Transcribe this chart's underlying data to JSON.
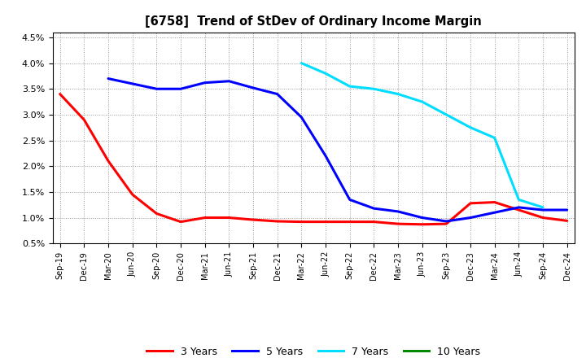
{
  "title": "[6758]  Trend of StDev of Ordinary Income Margin",
  "background_color": "#ffffff",
  "plot_bg_color": "#ffffff",
  "grid_color": "#999999",
  "ylim": [
    0.005,
    0.046
  ],
  "yticks": [
    0.005,
    0.01,
    0.015,
    0.02,
    0.025,
    0.03,
    0.035,
    0.04,
    0.045
  ],
  "ytick_labels": [
    "0.5%",
    "1.0%",
    "1.5%",
    "2.0%",
    "2.5%",
    "3.0%",
    "3.5%",
    "4.0%",
    "4.5%"
  ],
  "x_labels": [
    "Sep-19",
    "Dec-19",
    "Mar-20",
    "Jun-20",
    "Sep-20",
    "Dec-20",
    "Mar-21",
    "Jun-21",
    "Sep-21",
    "Dec-21",
    "Mar-22",
    "Jun-22",
    "Sep-22",
    "Dec-22",
    "Mar-23",
    "Jun-23",
    "Sep-23",
    "Dec-23",
    "Mar-24",
    "Jun-24",
    "Sep-24",
    "Dec-24"
  ],
  "series": {
    "3 Years": {
      "color": "#ff0000",
      "values": [
        0.034,
        0.029,
        0.021,
        0.0145,
        0.0108,
        0.0092,
        0.01,
        0.01,
        0.0096,
        0.0093,
        0.0092,
        0.0092,
        0.0092,
        0.0092,
        0.0088,
        0.0087,
        0.0088,
        0.0128,
        0.013,
        0.0115,
        0.01,
        0.0094
      ]
    },
    "5 Years": {
      "color": "#0000ff",
      "values": [
        null,
        null,
        0.037,
        0.036,
        0.035,
        0.035,
        0.0362,
        0.0365,
        0.0352,
        0.034,
        0.0295,
        0.022,
        0.0135,
        0.0118,
        0.0112,
        0.01,
        0.0093,
        0.01,
        0.011,
        0.012,
        0.0115,
        0.0115
      ]
    },
    "7 Years": {
      "color": "#00ddff",
      "values": [
        null,
        null,
        null,
        null,
        null,
        null,
        null,
        null,
        null,
        null,
        0.04,
        0.038,
        0.0355,
        0.035,
        0.034,
        0.0325,
        0.03,
        0.0275,
        0.0255,
        0.0135,
        0.012,
        null
      ]
    },
    "10 Years": {
      "color": "#008800",
      "values": [
        null,
        null,
        null,
        null,
        null,
        null,
        null,
        null,
        null,
        null,
        null,
        null,
        null,
        null,
        null,
        null,
        null,
        null,
        null,
        null,
        null,
        null
      ]
    }
  }
}
